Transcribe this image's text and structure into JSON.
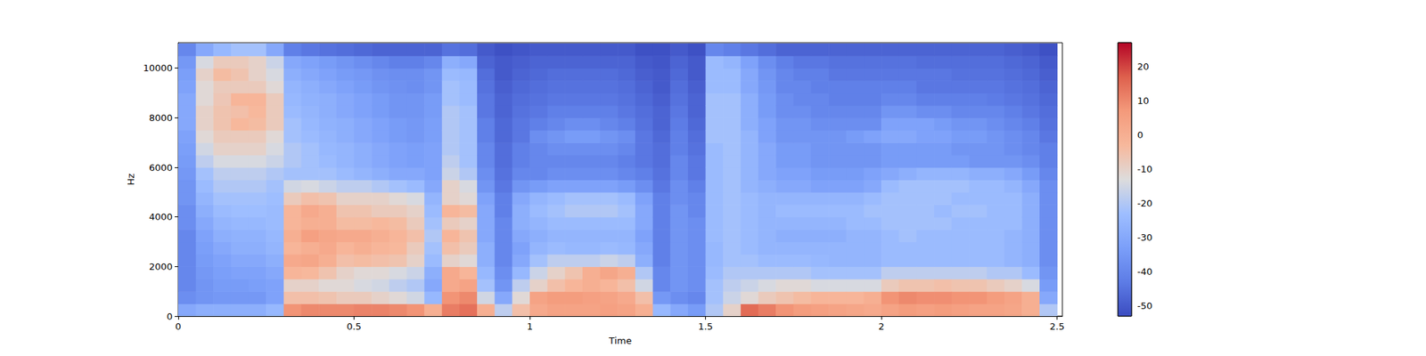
{
  "chart_data": {
    "type": "spectrogram",
    "xlabel": "Time",
    "ylabel": "Hz",
    "xlim": [
      0,
      2.515
    ],
    "xticks": [
      0,
      0.5,
      1,
      1.5,
      2,
      2.5
    ],
    "ylim": [
      0,
      11025
    ],
    "yticks": [
      0,
      2000,
      4000,
      6000,
      8000,
      10000
    ],
    "cells": {
      "x": [
        0.025,
        0.075,
        0.125,
        0.175,
        0.225,
        0.275,
        0.325,
        0.375,
        0.425,
        0.475,
        0.525,
        0.575,
        0.625,
        0.675,
        0.725,
        0.775,
        0.825,
        0.875,
        0.925,
        0.975,
        1.025,
        1.075,
        1.125,
        1.175,
        1.225,
        1.275,
        1.325,
        1.375,
        1.425,
        1.475,
        1.525,
        1.575,
        1.625,
        1.675,
        1.725,
        1.775,
        1.825,
        1.875,
        1.925,
        1.975,
        2.025,
        2.075,
        2.125,
        2.175,
        2.225,
        2.275,
        2.325,
        2.375,
        2.425,
        2.475
      ],
      "y": [
        250,
        750,
        1250,
        1750,
        2250,
        2750,
        3250,
        3750,
        4250,
        4750,
        5250,
        5750,
        6250,
        6750,
        7250,
        7750,
        8250,
        8750,
        9250,
        9750,
        10250,
        10750
      ],
      "z": [
        [
          -30,
          -38,
          -40,
          -40,
          -40,
          -40,
          -40,
          -38,
          -38,
          -36,
          -36,
          -35,
          -34,
          -33,
          -32,
          -30,
          -30,
          -30,
          -32,
          -33,
          -35,
          -40
        ],
        [
          -28,
          -36,
          -36,
          -35,
          -34,
          -33,
          -32,
          -30,
          -28,
          -26,
          -24,
          -22,
          -18,
          -15,
          -12,
          -10,
          -10,
          -12,
          -12,
          -10,
          -14,
          -30
        ],
        [
          -28,
          -35,
          -34,
          -33,
          -32,
          -30,
          -28,
          -26,
          -24,
          -22,
          -20,
          -18,
          -14,
          -10,
          -8,
          -6,
          -6,
          -7,
          -8,
          -4,
          -8,
          -25
        ],
        [
          -28,
          -35,
          -34,
          -32,
          -30,
          -28,
          -27,
          -25,
          -23,
          -22,
          -20,
          -18,
          -14,
          -10,
          -8,
          -3,
          -5,
          -2,
          -8,
          -6,
          -8,
          -22
        ],
        [
          -28,
          -35,
          -33,
          -32,
          -30,
          -28,
          -27,
          -25,
          -23,
          -22,
          -20,
          -18,
          -14,
          -10,
          -8,
          -4,
          -3,
          -2,
          -8,
          -10,
          -10,
          -22
        ],
        [
          -25,
          -32,
          -32,
          -30,
          -28,
          -26,
          -25,
          -24,
          -24,
          -23,
          -22,
          -20,
          -16,
          -14,
          -12,
          -8,
          -8,
          -8,
          -12,
          -14,
          -16,
          -30
        ],
        [
          8,
          -5,
          -10,
          -2,
          2,
          -2,
          0,
          -2,
          -2,
          -8,
          -15,
          -22,
          -20,
          -20,
          -22,
          -22,
          -24,
          -25,
          -26,
          -28,
          -30,
          -42
        ],
        [
          10,
          -5,
          -10,
          -3,
          3,
          0,
          5,
          0,
          2,
          -5,
          -14,
          -22,
          -22,
          -22,
          -24,
          -25,
          -26,
          -27,
          -28,
          -30,
          -32,
          -44
        ],
        [
          10,
          -6,
          -12,
          -6,
          0,
          2,
          3,
          0,
          0,
          -6,
          -16,
          -22,
          -24,
          -25,
          -26,
          -27,
          -28,
          -28,
          -30,
          -32,
          -34,
          -45
        ],
        [
          10,
          -8,
          -12,
          -10,
          -5,
          -2,
          2,
          -4,
          -6,
          -10,
          -18,
          -24,
          -26,
          -26,
          -28,
          -28,
          -30,
          -30,
          -32,
          -34,
          -36,
          -46
        ],
        [
          11,
          -8,
          -14,
          -12,
          -4,
          0,
          2,
          -4,
          -6,
          -10,
          -18,
          -26,
          -28,
          -28,
          -30,
          -30,
          -32,
          -32,
          -34,
          -35,
          -38,
          -47
        ],
        [
          11,
          -10,
          -15,
          -12,
          -5,
          -2,
          0,
          -3,
          -8,
          -10,
          -20,
          -28,
          -30,
          -30,
          -32,
          -32,
          -34,
          -34,
          -36,
          -37,
          -40,
          -48
        ],
        [
          10,
          -12,
          -18,
          -14,
          -6,
          -3,
          -2,
          -4,
          -8,
          -12,
          -22,
          -30,
          -32,
          -32,
          -34,
          -34,
          -36,
          -36,
          -37,
          -38,
          -42,
          -48
        ],
        [
          8,
          -15,
          -20,
          -16,
          -10,
          -8,
          -5,
          -8,
          -10,
          -14,
          -24,
          -30,
          -33,
          -33,
          -35,
          -35,
          -36,
          -36,
          -38,
          -38,
          -42,
          -48
        ],
        [
          0,
          -25,
          -30,
          -28,
          -24,
          -22,
          -20,
          -22,
          -24,
          -26,
          -30,
          -32,
          -32,
          -32,
          -33,
          -33,
          -34,
          -34,
          -36,
          -36,
          -40,
          -48
        ],
        [
          12,
          8,
          2,
          2,
          -10,
          -5,
          -2,
          -8,
          -2,
          -10,
          -10,
          -16,
          -18,
          -20,
          -20,
          -20,
          -20,
          -22,
          -22,
          -24,
          -28,
          -45
        ],
        [
          14,
          10,
          4,
          -2,
          -12,
          -8,
          -6,
          -10,
          -4,
          -12,
          -14,
          -20,
          -22,
          -22,
          -22,
          -22,
          -22,
          -24,
          -24,
          -25,
          -30,
          -46
        ],
        [
          0,
          -15,
          -22,
          -25,
          -28,
          -28,
          -30,
          -30,
          -30,
          -32,
          -36,
          -38,
          -40,
          -40,
          -42,
          -42,
          -44,
          -44,
          -45,
          -46,
          -48,
          -50
        ],
        [
          -18,
          -30,
          -36,
          -38,
          -40,
          -40,
          -40,
          -40,
          -42,
          -42,
          -44,
          -45,
          -46,
          -46,
          -47,
          -47,
          -48,
          -48,
          -49,
          -50,
          -50,
          -52
        ],
        [
          -5,
          -12,
          -18,
          -25,
          -30,
          -32,
          -30,
          -28,
          -28,
          -30,
          -36,
          -40,
          -42,
          -42,
          -44,
          -44,
          -45,
          -46,
          -47,
          -48,
          -49,
          -51
        ],
        [
          2,
          4,
          -10,
          -16,
          -22,
          -26,
          -28,
          -26,
          -24,
          -26,
          -34,
          -40,
          -40,
          -40,
          -38,
          -42,
          -44,
          -45,
          -46,
          -47,
          -48,
          -50
        ],
        [
          4,
          6,
          -5,
          -10,
          -18,
          -24,
          -26,
          -24,
          -22,
          -24,
          -32,
          -38,
          -40,
          -38,
          -36,
          -40,
          -42,
          -44,
          -45,
          -46,
          -48,
          -50
        ],
        [
          4,
          6,
          -2,
          -6,
          -18,
          -25,
          -26,
          -24,
          -20,
          -22,
          -32,
          -38,
          -40,
          -38,
          -34,
          -38,
          -42,
          -44,
          -45,
          -46,
          -48,
          -50
        ],
        [
          4,
          5,
          0,
          0,
          -18,
          -25,
          -26,
          -24,
          -20,
          -22,
          -32,
          -38,
          -40,
          -38,
          -34,
          -38,
          -42,
          -44,
          -45,
          -46,
          -48,
          -50
        ],
        [
          5,
          4,
          -2,
          3,
          -16,
          -24,
          -26,
          -24,
          -20,
          -22,
          -32,
          -38,
          -40,
          -38,
          -36,
          -40,
          -42,
          -44,
          -45,
          -46,
          -48,
          -50
        ],
        [
          4,
          2,
          -5,
          0,
          -18,
          -25,
          -26,
          -24,
          -22,
          -24,
          -34,
          -40,
          -42,
          -40,
          -38,
          -42,
          -44,
          -45,
          -46,
          -47,
          -48,
          -50
        ],
        [
          0,
          -5,
          -15,
          -20,
          -28,
          -30,
          -32,
          -30,
          -30,
          -32,
          -38,
          -42,
          -44,
          -44,
          -44,
          -45,
          -46,
          -47,
          -48,
          -49,
          -50,
          -52
        ],
        [
          -25,
          -35,
          -40,
          -40,
          -42,
          -42,
          -42,
          -42,
          -42,
          -42,
          -44,
          -45,
          -46,
          -46,
          -47,
          -48,
          -48,
          -49,
          -50,
          -50,
          -51,
          -52
        ],
        [
          -30,
          -38,
          -36,
          -36,
          -36,
          -36,
          -36,
          -36,
          -36,
          -38,
          -38,
          -40,
          -40,
          -42,
          -42,
          -43,
          -44,
          -45,
          -46,
          -47,
          -48,
          -50
        ],
        [
          -34,
          -40,
          -38,
          -38,
          -38,
          -38,
          -38,
          -38,
          -40,
          -40,
          -42,
          -44,
          -44,
          -45,
          -46,
          -47,
          -48,
          -48,
          -49,
          -50,
          -50,
          -52
        ],
        [
          -20,
          -22,
          -22,
          -24,
          -25,
          -25,
          -24,
          -24,
          -24,
          -24,
          -24,
          -24,
          -24,
          -24,
          -22,
          -22,
          -22,
          -22,
          -24,
          -24,
          -24,
          -40
        ],
        [
          -10,
          -16,
          -18,
          -20,
          -22,
          -22,
          -22,
          -22,
          -22,
          -22,
          -22,
          -22,
          -22,
          -22,
          -22,
          -22,
          -22,
          -22,
          -24,
          -24,
          -26,
          -42
        ],
        [
          15,
          -12,
          -16,
          -20,
          -22,
          -24,
          -24,
          -24,
          -24,
          -24,
          -26,
          -26,
          -26,
          -26,
          -26,
          -28,
          -28,
          -28,
          -30,
          -30,
          -32,
          -44
        ],
        [
          12,
          -8,
          -14,
          -20,
          -24,
          -26,
          -26,
          -26,
          -26,
          -26,
          -28,
          -30,
          -30,
          -30,
          -32,
          -32,
          -34,
          -34,
          -35,
          -36,
          -38,
          -46
        ],
        [
          8,
          -6,
          -12,
          -20,
          -24,
          -26,
          -28,
          -26,
          -24,
          -26,
          -30,
          -32,
          -34,
          -34,
          -36,
          -36,
          -38,
          -38,
          -40,
          -40,
          -42,
          -48
        ],
        [
          6,
          -4,
          -12,
          -20,
          -24,
          -26,
          -28,
          -26,
          -24,
          -26,
          -30,
          -32,
          -34,
          -34,
          -36,
          -36,
          -38,
          -40,
          -40,
          -42,
          -44,
          -48
        ],
        [
          5,
          -2,
          -14,
          -22,
          -25,
          -26,
          -28,
          -26,
          -24,
          -26,
          -32,
          -34,
          -36,
          -36,
          -36,
          -38,
          -40,
          -40,
          -42,
          -42,
          -44,
          -48
        ],
        [
          4,
          -2,
          -14,
          -22,
          -26,
          -26,
          -28,
          -26,
          -24,
          -26,
          -32,
          -34,
          -36,
          -36,
          -36,
          -38,
          -40,
          -42,
          -42,
          -44,
          -45,
          -48
        ],
        [
          3,
          -2,
          -14,
          -22,
          -26,
          -26,
          -26,
          -24,
          -24,
          -26,
          -32,
          -34,
          -36,
          -36,
          -34,
          -38,
          -40,
          -42,
          -42,
          -44,
          -45,
          -48
        ],
        [
          2,
          0,
          -14,
          -22,
          -26,
          -26,
          -26,
          -24,
          -22,
          -24,
          -30,
          -32,
          -36,
          -36,
          -32,
          -38,
          -40,
          -42,
          -42,
          -44,
          -45,
          -48
        ],
        [
          4,
          8,
          -8,
          -18,
          -24,
          -24,
          -24,
          -22,
          -22,
          -22,
          -24,
          -30,
          -34,
          -34,
          -30,
          -32,
          -36,
          -40,
          -42,
          -44,
          -45,
          -48
        ],
        [
          6,
          10,
          -6,
          -18,
          -24,
          -24,
          -22,
          -22,
          -22,
          -22,
          -22,
          -28,
          -34,
          -34,
          -30,
          -32,
          -36,
          -40,
          -42,
          -44,
          -45,
          -48
        ],
        [
          5,
          9,
          -6,
          -18,
          -24,
          -24,
          -24,
          -22,
          -22,
          -22,
          -22,
          -26,
          -34,
          -34,
          -32,
          -32,
          -38,
          -42,
          -44,
          -44,
          -46,
          -48
        ],
        [
          6,
          9,
          -5,
          -18,
          -24,
          -24,
          -24,
          -22,
          -24,
          -22,
          -22,
          -26,
          -34,
          -34,
          -32,
          -34,
          -38,
          -42,
          -44,
          -44,
          -46,
          -48
        ],
        [
          5,
          8,
          -6,
          -18,
          -24,
          -24,
          -24,
          -24,
          -22,
          -24,
          -22,
          -26,
          -34,
          -36,
          -34,
          -36,
          -40,
          -42,
          -44,
          -45,
          -46,
          -48
        ],
        [
          4,
          8,
          -6,
          -18,
          -24,
          -24,
          -24,
          -24,
          -22,
          -24,
          -24,
          -28,
          -36,
          -36,
          -34,
          -36,
          -40,
          -42,
          -44,
          -45,
          -46,
          -48
        ],
        [
          4,
          6,
          -8,
          -20,
          -24,
          -24,
          -24,
          -24,
          -24,
          -24,
          -24,
          -28,
          -36,
          -36,
          -36,
          -38,
          -40,
          -43,
          -44,
          -45,
          -46,
          -48
        ],
        [
          3,
          4,
          -10,
          -20,
          -26,
          -26,
          -26,
          -24,
          -24,
          -24,
          -26,
          -30,
          -36,
          -38,
          -38,
          -40,
          -42,
          -44,
          -45,
          -46,
          -47,
          -49
        ],
        [
          0,
          0,
          -14,
          -24,
          -28,
          -28,
          -28,
          -28,
          -28,
          -28,
          -30,
          -34,
          -38,
          -40,
          -40,
          -42,
          -44,
          -45,
          -46,
          -47,
          -48,
          -50
        ],
        [
          -20,
          -30,
          -34,
          -36,
          -38,
          -38,
          -38,
          -38,
          -38,
          -38,
          -38,
          -40,
          -42,
          -42,
          -44,
          -45,
          -46,
          -47,
          -48,
          -49,
          -50,
          -52
        ]
      ]
    },
    "colorbar": {
      "range": [
        -53,
        27
      ],
      "ticks": [
        -50,
        -40,
        -30,
        -20,
        -10,
        0,
        10,
        20
      ]
    }
  }
}
